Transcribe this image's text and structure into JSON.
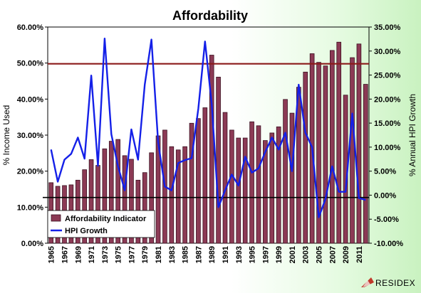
{
  "chart_data": {
    "type": "bar",
    "title": "Affordability",
    "ylabel": "% Income Used",
    "y2label": "% Annual HPI Growth",
    "ylim": [
      0,
      60
    ],
    "y2lim": [
      -10,
      35
    ],
    "y_ticks": [
      "0.00%",
      "10.00%",
      "20.00%",
      "30.00%",
      "40.00%",
      "50.00%",
      "60.00%"
    ],
    "y2_ticks": [
      "-10.00%",
      "-5.00%",
      "0.00%",
      "5.00%",
      "10.00%",
      "15.00%",
      "20.00%",
      "25.00%",
      "30.00%",
      "35.00%"
    ],
    "x_tick_labels": [
      "1965",
      "1967",
      "1969",
      "1971",
      "1973",
      "1975",
      "1977",
      "1979",
      "1981",
      "1983",
      "1985",
      "1987",
      "1989",
      "1991",
      "1993",
      "1995",
      "1997",
      "1999",
      "2001",
      "2003",
      "2005",
      "2007",
      "2009",
      "2011"
    ],
    "categories": [
      1965,
      1966,
      1967,
      1968,
      1969,
      1970,
      1971,
      1972,
      1973,
      1974,
      1975,
      1976,
      1977,
      1978,
      1979,
      1980,
      1981,
      1982,
      1983,
      1984,
      1985,
      1986,
      1987,
      1988,
      1989,
      1990,
      1991,
      1992,
      1993,
      1994,
      1995,
      1996,
      1997,
      1998,
      1999,
      2000,
      2001,
      2002,
      2003,
      2004,
      2005,
      2006,
      2007,
      2008,
      2009,
      2010,
      2011,
      2012
    ],
    "series": [
      {
        "name": "Affordability Indicator",
        "kind": "bar",
        "axis": "left",
        "values": [
          16.8,
          15.8,
          16.0,
          16.2,
          17.5,
          20.4,
          23.2,
          21.6,
          26.2,
          28.3,
          28.8,
          24.3,
          23.3,
          17.5,
          19.6,
          25.1,
          29.8,
          31.4,
          26.8,
          25.9,
          26.8,
          33.3,
          34.6,
          37.6,
          52.2,
          46.1,
          36.3,
          31.4,
          29.2,
          29.2,
          33.7,
          32.6,
          28.5,
          30.6,
          32.3,
          39.9,
          36.1,
          43.3,
          47.5,
          52.6,
          50.2,
          49.2,
          53.5,
          55.8,
          41.1,
          51.5,
          55.3,
          44.1
        ]
      },
      {
        "name": "HPI Growth",
        "kind": "line",
        "axis": "right",
        "values": [
          9.5,
          2.8,
          7.4,
          8.6,
          12.0,
          7.6,
          24.9,
          6.1,
          32.6,
          12.7,
          6.0,
          1.0,
          13.7,
          7.4,
          23.0,
          32.4,
          11.0,
          1.8,
          1.0,
          6.7,
          7.3,
          7.7,
          18.0,
          32.0,
          19.0,
          -2.5,
          1.0,
          4.3,
          2.0,
          8.0,
          4.7,
          5.6,
          9.0,
          12.0,
          9.5,
          13.0,
          5.0,
          23.0,
          13.0,
          10.0,
          -4.6,
          -0.8,
          6.0,
          0.7,
          0.7,
          17.0,
          -0.6,
          -1.0
        ]
      }
    ],
    "reference_lines": [
      {
        "axis": "left",
        "value": 49.8,
        "color": "#8b1a1a"
      },
      {
        "axis": "left",
        "value": 12.7,
        "color": "#000000"
      }
    ],
    "colors": {
      "bar": "#8c3a55",
      "bar_edge": "#3a1020",
      "line": "#1420e8"
    },
    "legend": "bottom-left",
    "grid": false
  },
  "branding": {
    "logo_text": "RESIDEX"
  }
}
